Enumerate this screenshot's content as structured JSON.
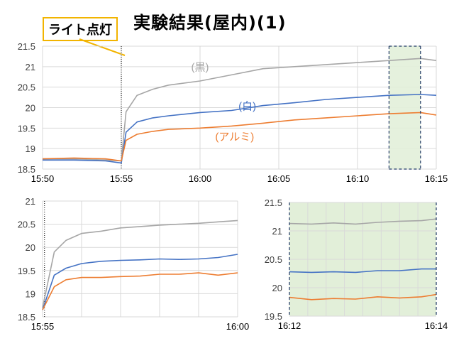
{
  "title": "実験結果(屋内)(1)",
  "callout": "ライト点灯",
  "colors": {
    "black": "#a6a6a6",
    "white": "#4472c4",
    "aluminum": "#ed7d31",
    "highlight": "#e2efd9",
    "callout_border": "#f2b400",
    "grid": "#d9d9d9"
  },
  "chart_data": [
    {
      "type": "line",
      "xticks": [
        "15:50",
        "15:55",
        "16:00",
        "16:05",
        "16:10",
        "16:15"
      ],
      "xlim_minutes": [
        0,
        25
      ],
      "ylim": [
        18.5,
        21.5
      ],
      "yticks": [
        "18.5",
        "19",
        "19.5",
        "20",
        "20.5",
        "21",
        "21.5"
      ],
      "light_on_minute": 5,
      "highlight_minutes": [
        22,
        24
      ],
      "series": [
        {
          "name": "(黒)",
          "key": "black",
          "points": [
            [
              0,
              18.75
            ],
            [
              2,
              18.75
            ],
            [
              4,
              18.72
            ],
            [
              5,
              18.7
            ],
            [
              5.3,
              19.9
            ],
            [
              6,
              20.3
            ],
            [
              7,
              20.45
            ],
            [
              8,
              20.55
            ],
            [
              10,
              20.65
            ],
            [
              12,
              20.8
            ],
            [
              14,
              20.95
            ],
            [
              16,
              21.0
            ],
            [
              18,
              21.05
            ],
            [
              20,
              21.1
            ],
            [
              22,
              21.15
            ],
            [
              24,
              21.2
            ],
            [
              25,
              21.15
            ]
          ]
        },
        {
          "name": "(白)",
          "key": "white",
          "points": [
            [
              0,
              18.72
            ],
            [
              2,
              18.72
            ],
            [
              4,
              18.7
            ],
            [
              5,
              18.65
            ],
            [
              5.3,
              19.4
            ],
            [
              6,
              19.65
            ],
            [
              7,
              19.75
            ],
            [
              8,
              19.8
            ],
            [
              10,
              19.88
            ],
            [
              12,
              19.93
            ],
            [
              14,
              20.05
            ],
            [
              16,
              20.12
            ],
            [
              18,
              20.2
            ],
            [
              20,
              20.25
            ],
            [
              22,
              20.3
            ],
            [
              24,
              20.32
            ],
            [
              25,
              20.3
            ]
          ]
        },
        {
          "name": "(アルミ)",
          "key": "aluminum",
          "points": [
            [
              0,
              18.75
            ],
            [
              2,
              18.77
            ],
            [
              4,
              18.75
            ],
            [
              5,
              18.7
            ],
            [
              5.3,
              19.2
            ],
            [
              6,
              19.35
            ],
            [
              7,
              19.42
            ],
            [
              8,
              19.47
            ],
            [
              10,
              19.5
            ],
            [
              12,
              19.55
            ],
            [
              14,
              19.62
            ],
            [
              16,
              19.7
            ],
            [
              18,
              19.75
            ],
            [
              20,
              19.8
            ],
            [
              22,
              19.85
            ],
            [
              24,
              19.88
            ],
            [
              25,
              19.82
            ]
          ]
        }
      ]
    },
    {
      "type": "line",
      "xticks": [
        "15:55",
        "16:00"
      ],
      "xlim_minutes": [
        0,
        5
      ],
      "ylim": [
        18.5,
        21
      ],
      "yticks": [
        "18.5",
        "19",
        "19.5",
        "20",
        "20.5",
        "21"
      ],
      "light_on_minute": 0.05,
      "series": [
        {
          "key": "black",
          "points": [
            [
              0,
              18.7
            ],
            [
              0.3,
              19.9
            ],
            [
              0.6,
              20.15
            ],
            [
              1,
              20.3
            ],
            [
              1.5,
              20.35
            ],
            [
              2,
              20.42
            ],
            [
              2.5,
              20.45
            ],
            [
              3,
              20.48
            ],
            [
              3.5,
              20.5
            ],
            [
              4,
              20.52
            ],
            [
              4.5,
              20.55
            ],
            [
              5,
              20.58
            ]
          ]
        },
        {
          "key": "white",
          "points": [
            [
              0,
              18.65
            ],
            [
              0.3,
              19.4
            ],
            [
              0.6,
              19.55
            ],
            [
              1,
              19.65
            ],
            [
              1.5,
              19.7
            ],
            [
              2,
              19.72
            ],
            [
              2.5,
              19.73
            ],
            [
              3,
              19.75
            ],
            [
              3.5,
              19.74
            ],
            [
              4,
              19.75
            ],
            [
              4.5,
              19.78
            ],
            [
              5,
              19.85
            ]
          ]
        },
        {
          "key": "aluminum",
          "points": [
            [
              0,
              18.65
            ],
            [
              0.3,
              19.15
            ],
            [
              0.6,
              19.3
            ],
            [
              1,
              19.35
            ],
            [
              1.5,
              19.35
            ],
            [
              2,
              19.37
            ],
            [
              2.5,
              19.38
            ],
            [
              3,
              19.42
            ],
            [
              3.5,
              19.42
            ],
            [
              4,
              19.45
            ],
            [
              4.5,
              19.4
            ],
            [
              5,
              19.45
            ]
          ]
        }
      ]
    },
    {
      "type": "line",
      "xticks": [
        "16:12",
        "16:14"
      ],
      "xlim_minutes": [
        0,
        2
      ],
      "ylim": [
        19.5,
        21.5
      ],
      "yticks": [
        "19.5",
        "20",
        "20.5",
        "21",
        "21.5"
      ],
      "series": [
        {
          "key": "black",
          "points": [
            [
              0,
              21.13
            ],
            [
              0.3,
              21.12
            ],
            [
              0.6,
              21.14
            ],
            [
              0.9,
              21.12
            ],
            [
              1.2,
              21.15
            ],
            [
              1.5,
              21.17
            ],
            [
              1.8,
              21.18
            ],
            [
              2,
              21.21
            ]
          ]
        },
        {
          "key": "white",
          "points": [
            [
              0,
              20.28
            ],
            [
              0.3,
              20.27
            ],
            [
              0.6,
              20.28
            ],
            [
              0.9,
              20.27
            ],
            [
              1.2,
              20.3
            ],
            [
              1.5,
              20.3
            ],
            [
              1.8,
              20.33
            ],
            [
              2,
              20.33
            ]
          ]
        },
        {
          "key": "aluminum",
          "points": [
            [
              0,
              19.83
            ],
            [
              0.3,
              19.79
            ],
            [
              0.6,
              19.81
            ],
            [
              0.9,
              19.8
            ],
            [
              1.2,
              19.84
            ],
            [
              1.5,
              19.82
            ],
            [
              1.8,
              19.84
            ],
            [
              2,
              19.88
            ]
          ]
        }
      ]
    }
  ]
}
